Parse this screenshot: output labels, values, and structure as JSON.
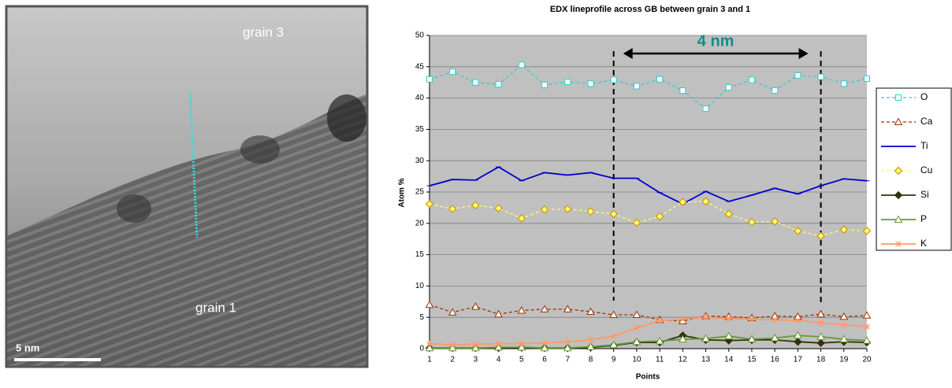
{
  "image": {
    "labels": [
      "grain 3",
      "grain 1"
    ],
    "scale_bar": "5 nm"
  },
  "chart_data": {
    "type": "line",
    "title": "EDX lineprofile across GB between grain 3 and 1",
    "x_label": "Points",
    "y_label": "Atom %",
    "categories": [
      "1",
      "2",
      "3",
      "4",
      "5",
      "6",
      "7",
      "8",
      "9",
      "10",
      "11",
      "12",
      "13",
      "14",
      "15",
      "16",
      "17",
      "18",
      "19",
      "20"
    ],
    "ylim": [
      0,
      50
    ],
    "yticks": [
      0,
      5,
      10,
      15,
      20,
      25,
      30,
      35,
      40,
      45,
      50
    ],
    "grid": true,
    "legend": "right",
    "annotation": {
      "text": "4 nm",
      "from": "9",
      "to": "18"
    },
    "series": [
      {
        "name": "O",
        "color": "#33cccc",
        "dash": true,
        "marker": "square",
        "values": [
          43,
          44.2,
          42.5,
          42.2,
          45.3,
          42.1,
          42.6,
          42.3,
          42.9,
          41.9,
          43,
          41.2,
          38.3,
          41.7,
          42.9,
          41.2,
          43.6,
          43.4,
          42.3,
          43.1
        ]
      },
      {
        "name": "Ca",
        "color": "#993300",
        "dash": true,
        "marker": "triangle",
        "values": [
          7,
          5.8,
          6.7,
          5.5,
          6.1,
          6.3,
          6.3,
          5.9,
          5.4,
          5.4,
          4.6,
          4.4,
          5.2,
          5.1,
          4.9,
          5.2,
          5.1,
          5.5,
          5.1,
          5.3
        ]
      },
      {
        "name": "Ti",
        "color": "#0000cc",
        "dash": false,
        "marker": "dash",
        "values": [
          26,
          27,
          26.9,
          29,
          26.8,
          28.1,
          27.7,
          28.1,
          27.2,
          27.2,
          24.9,
          23.1,
          25.1,
          23.5,
          24.5,
          25.6,
          24.7,
          26,
          27.1,
          26.8
        ]
      },
      {
        "name": "Cu",
        "color": "#ffff66",
        "dash": true,
        "marker": "diamond",
        "values": [
          23.1,
          22.3,
          22.9,
          22.4,
          20.8,
          22.2,
          22.3,
          21.9,
          21.5,
          20.1,
          21.1,
          23.4,
          23.5,
          21.5,
          20.2,
          20.3,
          18.8,
          18,
          19,
          18.8
        ]
      },
      {
        "name": "Si",
        "color": "#333300",
        "dash": false,
        "marker": "diamond",
        "values": [
          0.1,
          0.1,
          0.1,
          0.1,
          0.2,
          0.1,
          0.1,
          0.2,
          0.5,
          1,
          1,
          2.1,
          1.4,
          1.3,
          1.4,
          1.4,
          1.1,
          0.9,
          1.1,
          1
        ]
      },
      {
        "name": "P",
        "color": "#669933",
        "dash": false,
        "marker": "triangle",
        "values": [
          0.1,
          0.1,
          0.1,
          0.2,
          0.2,
          0.1,
          0.1,
          0.3,
          0.6,
          1.1,
          1.2,
          1.5,
          1.6,
          2,
          1.5,
          1.7,
          2.1,
          1.9,
          1.5,
          1.3
        ]
      },
      {
        "name": "K",
        "color": "#ff9966",
        "dash": false,
        "marker": "star",
        "values": [
          0.8,
          0.6,
          0.7,
          0.8,
          0.8,
          0.9,
          1.1,
          1.4,
          2,
          3.3,
          4.5,
          4.7,
          5,
          4.8,
          4.7,
          4.6,
          4.5,
          4.1,
          3.8,
          3.5
        ]
      }
    ]
  }
}
